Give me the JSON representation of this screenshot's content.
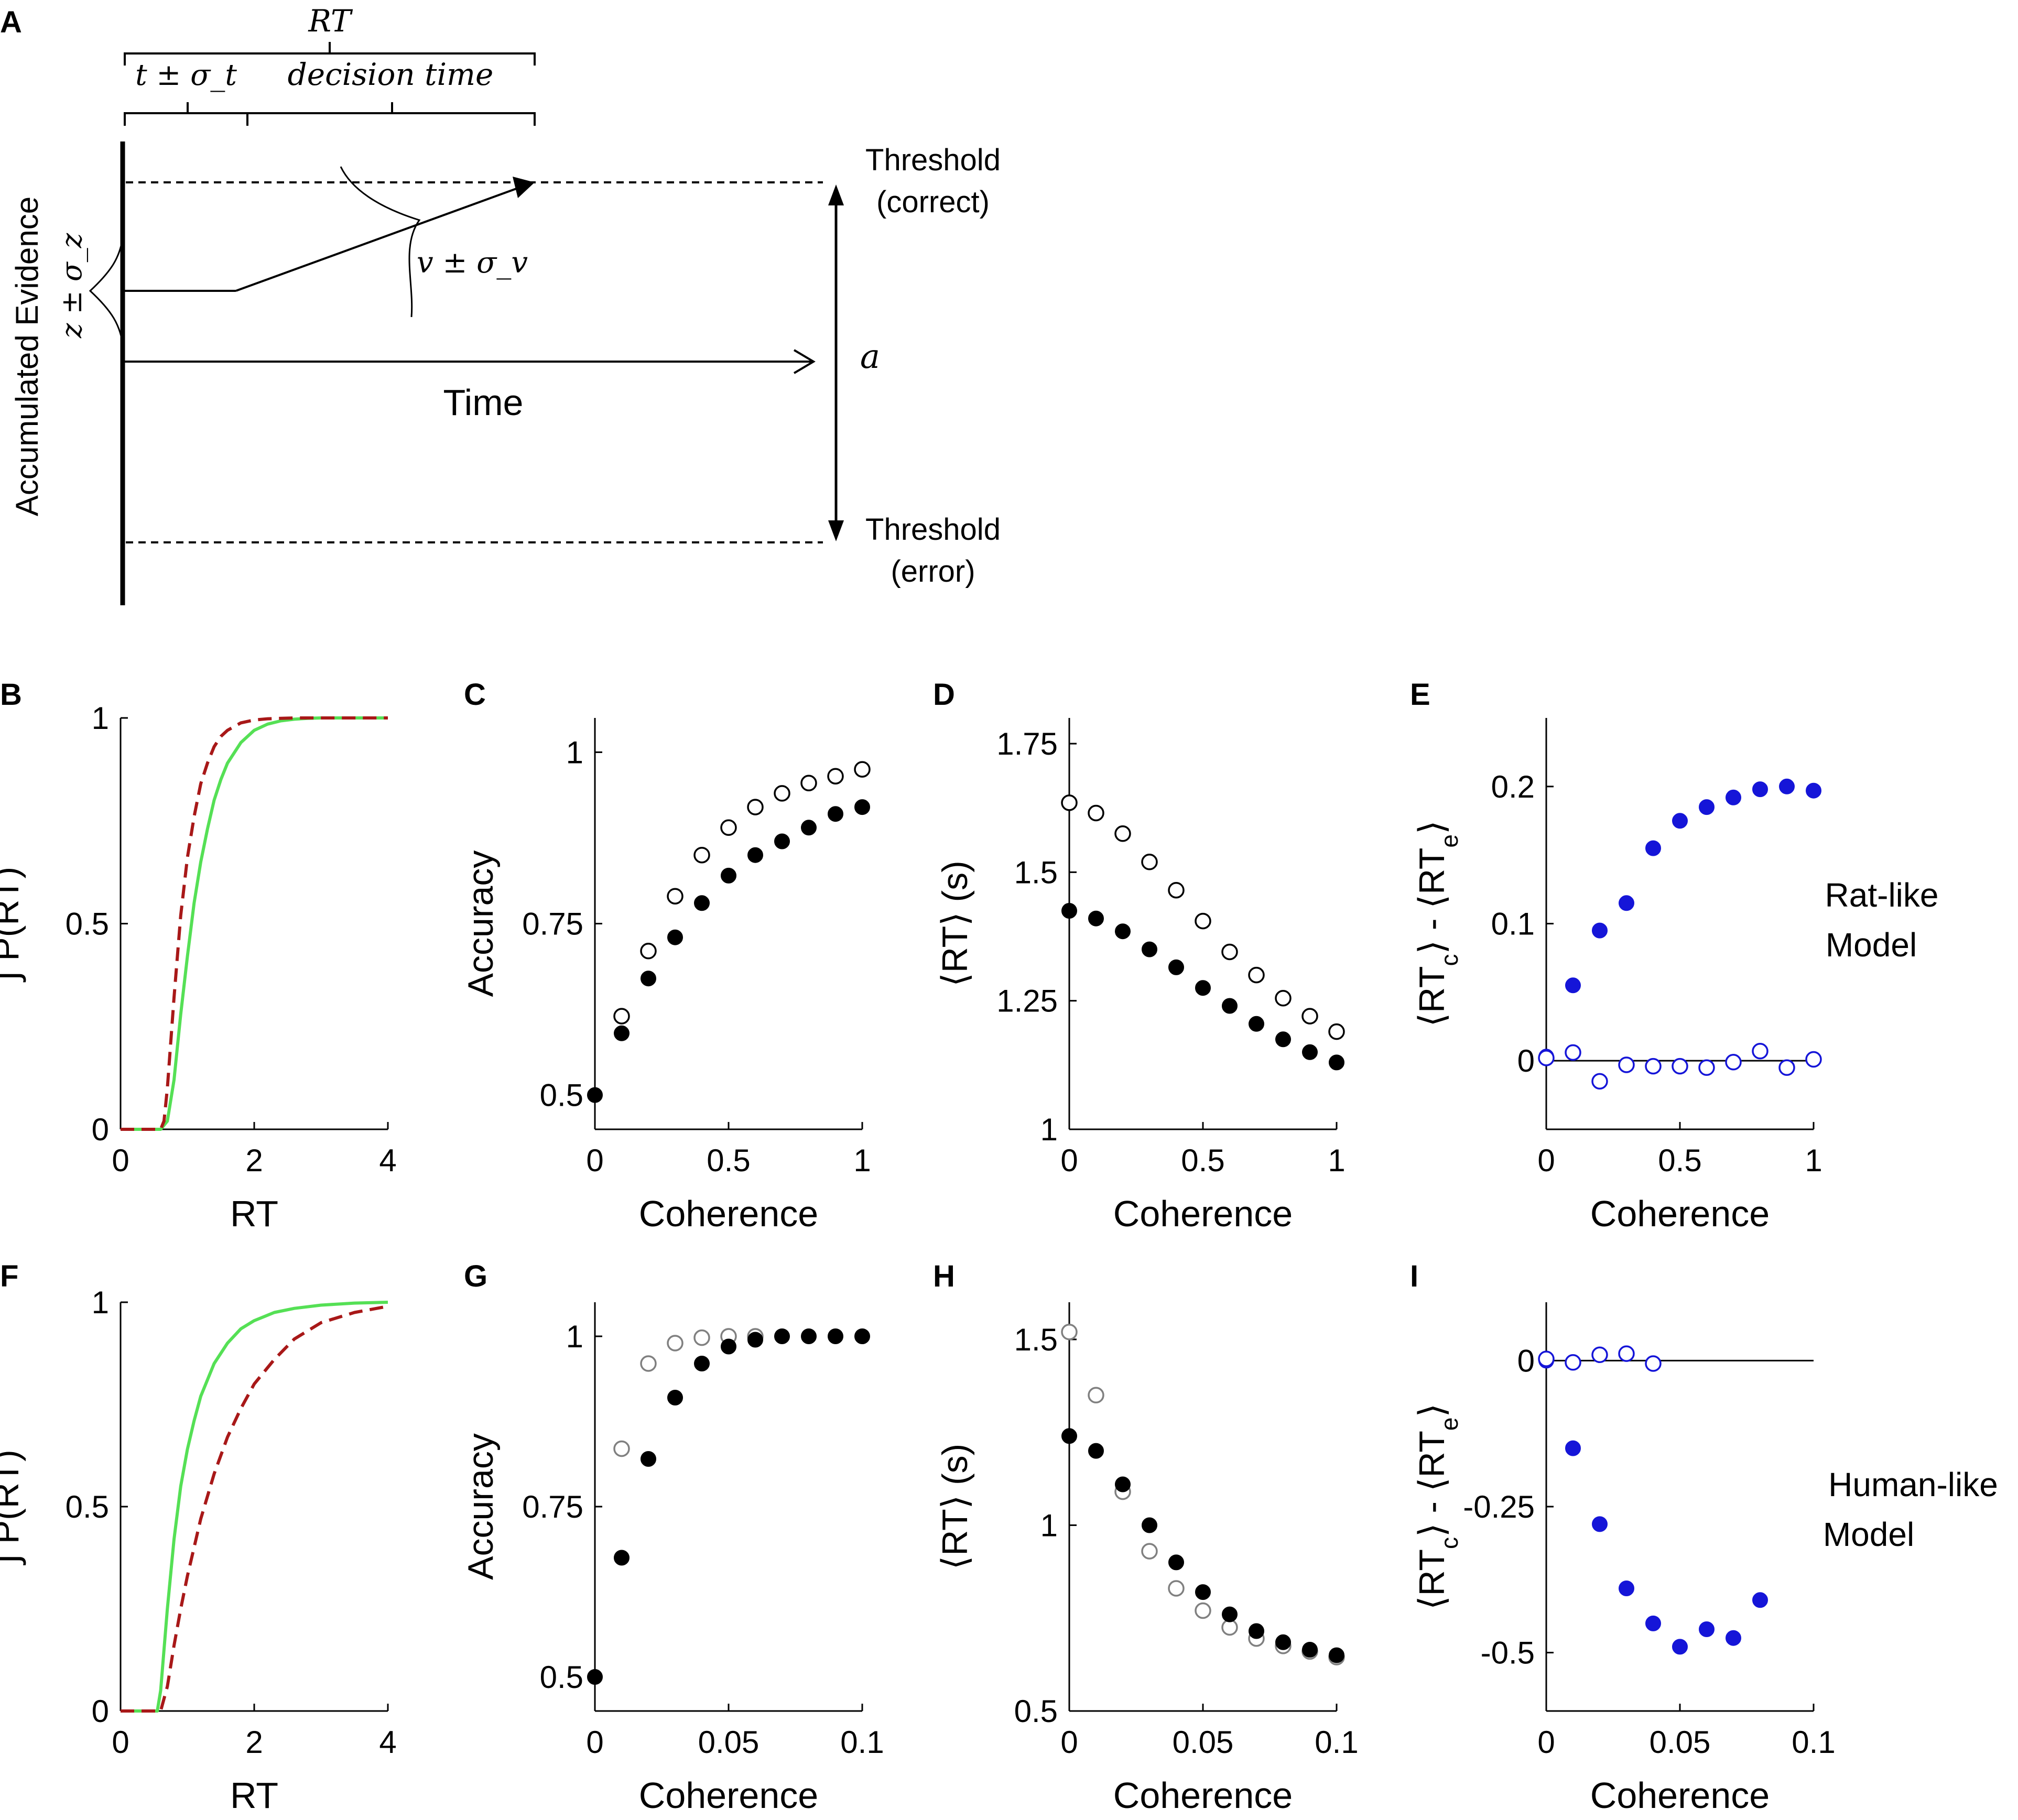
{
  "panel_letters": [
    "A",
    "B",
    "C",
    "D",
    "E",
    "F",
    "G",
    "H",
    "I"
  ],
  "schematic": {
    "rt_label": "RT",
    "nondecision_label": "t ± σ_t",
    "decision_time_label": "decision time",
    "y_axis_label": "Accumulated Evidence",
    "start_label": "z ± σ_z",
    "drift_label": "v ± σ_v",
    "x_axis_label": "Time",
    "threshold_top": [
      "Threshold",
      "(correct)"
    ],
    "threshold_bottom": [
      "Threshold",
      "(error)"
    ],
    "separation_label": "a"
  },
  "row_labels": {
    "rat": [
      "Rat-like",
      "Model"
    ],
    "human": [
      "Human-like",
      "Model"
    ]
  },
  "colors": {
    "green": "#55e055",
    "red": "#a81818",
    "blue": "#1515d8",
    "grey": "#808080",
    "black": "#000000"
  },
  "chart_data": [
    {
      "id": "B",
      "type": "line",
      "title": "",
      "xlabel": "RT",
      "ylabel": "∫ P(RT)",
      "xlim": [
        0,
        4
      ],
      "ylim": [
        0,
        1
      ],
      "xticks": [
        0,
        2,
        4
      ],
      "xtick_labels": [
        "0",
        "2",
        "4"
      ],
      "yticks": [
        0,
        0.5,
        1
      ],
      "ytick_labels": [
        "0",
        "0.5",
        "1"
      ],
      "series": [
        {
          "name": "correct",
          "style": "solid",
          "color": "green",
          "x": [
            0,
            0.6,
            0.7,
            0.8,
            0.9,
            1.0,
            1.1,
            1.2,
            1.3,
            1.4,
            1.5,
            1.6,
            1.8,
            2.0,
            2.2,
            2.4,
            2.6,
            2.8,
            3.0,
            3.5,
            4.0
          ],
          "y": [
            0,
            0,
            0.02,
            0.12,
            0.28,
            0.42,
            0.55,
            0.65,
            0.73,
            0.8,
            0.85,
            0.89,
            0.94,
            0.97,
            0.985,
            0.993,
            0.997,
            0.999,
            1.0,
            1.0,
            1.0
          ]
        },
        {
          "name": "error",
          "style": "dashed",
          "color": "red",
          "x": [
            0,
            0.6,
            0.65,
            0.7,
            0.8,
            0.9,
            1.0,
            1.1,
            1.2,
            1.3,
            1.4,
            1.5,
            1.6,
            1.8,
            2.0,
            2.2,
            2.4,
            2.6,
            3.0,
            3.5,
            4.0
          ],
          "y": [
            0,
            0,
            0.02,
            0.1,
            0.32,
            0.52,
            0.66,
            0.76,
            0.84,
            0.89,
            0.93,
            0.955,
            0.97,
            0.988,
            0.995,
            0.998,
            0.999,
            1.0,
            1.0,
            1.0,
            1.0
          ]
        }
      ]
    },
    {
      "id": "C",
      "type": "scatter",
      "title": "",
      "xlabel": "Coherence",
      "ylabel": "Accuracy",
      "xlim": [
        0,
        1
      ],
      "ylim": [
        0.45,
        1.05
      ],
      "xticks": [
        0,
        0.5,
        1
      ],
      "xtick_labels": [
        "0",
        "0.5",
        "1"
      ],
      "yticks": [
        0.5,
        0.75,
        1
      ],
      "ytick_labels": [
        "0.5",
        "0.75",
        "1"
      ],
      "series": [
        {
          "name": "filled",
          "marker": "filled",
          "color": "black",
          "x": [
            0,
            0.1,
            0.2,
            0.3,
            0.4,
            0.5,
            0.6,
            0.7,
            0.8,
            0.9,
            1.0
          ],
          "y": [
            0.5,
            0.59,
            0.67,
            0.73,
            0.78,
            0.82,
            0.85,
            0.87,
            0.89,
            0.91,
            0.92
          ]
        },
        {
          "name": "open",
          "marker": "open",
          "color": "black",
          "x": [
            0.1,
            0.2,
            0.3,
            0.4,
            0.5,
            0.6,
            0.7,
            0.8,
            0.9,
            1.0
          ],
          "y": [
            0.615,
            0.71,
            0.79,
            0.85,
            0.89,
            0.92,
            0.94,
            0.955,
            0.965,
            0.975
          ]
        }
      ]
    },
    {
      "id": "D",
      "type": "scatter",
      "title": "",
      "xlabel": "Coherence",
      "ylabel": "⟨RT⟩ (s)",
      "xlim": [
        0,
        1
      ],
      "ylim": [
        1,
        1.8
      ],
      "xticks": [
        0,
        0.5,
        1
      ],
      "xtick_labels": [
        "0",
        "0.5",
        "1"
      ],
      "yticks": [
        1,
        1.25,
        1.5,
        1.75
      ],
      "ytick_labels": [
        "1",
        "1.25",
        "1.5",
        "1.75"
      ],
      "series": [
        {
          "name": "open",
          "marker": "open",
          "color": "black",
          "x": [
            0,
            0.1,
            0.2,
            0.3,
            0.4,
            0.5,
            0.6,
            0.7,
            0.8,
            0.9,
            1.0
          ],
          "y": [
            1.635,
            1.615,
            1.575,
            1.52,
            1.465,
            1.405,
            1.345,
            1.3,
            1.255,
            1.22,
            1.19
          ]
        },
        {
          "name": "filled",
          "marker": "filled",
          "color": "black",
          "x": [
            0,
            0.1,
            0.2,
            0.3,
            0.4,
            0.5,
            0.6,
            0.7,
            0.8,
            0.9,
            1.0
          ],
          "y": [
            1.425,
            1.41,
            1.385,
            1.35,
            1.315,
            1.275,
            1.24,
            1.205,
            1.175,
            1.15,
            1.13
          ]
        }
      ]
    },
    {
      "id": "E",
      "type": "scatter",
      "title": "",
      "xlabel": "Coherence",
      "ylabel": "⟨RT_c⟩ - ⟨RT_e⟩",
      "xlim": [
        0,
        1
      ],
      "ylim": [
        -0.05,
        0.25
      ],
      "xticks": [
        0,
        0.5,
        1
      ],
      "xtick_labels": [
        "0",
        "0.5",
        "1"
      ],
      "yticks": [
        0,
        0.1,
        0.2
      ],
      "ytick_labels": [
        "0",
        "0.1",
        "0.2"
      ],
      "zero_line": true,
      "series": [
        {
          "name": "filled",
          "marker": "filled",
          "color": "blue",
          "x": [
            0,
            0.1,
            0.2,
            0.3,
            0.4,
            0.5,
            0.6,
            0.7,
            0.8,
            0.9,
            1.0
          ],
          "y": [
            0.003,
            0.055,
            0.095,
            0.115,
            0.155,
            0.175,
            0.185,
            0.192,
            0.198,
            0.2,
            0.197
          ]
        },
        {
          "name": "open",
          "marker": "open",
          "color": "blue",
          "x": [
            0,
            0.1,
            0.2,
            0.3,
            0.4,
            0.5,
            0.6,
            0.7,
            0.8,
            0.9,
            1.0
          ],
          "y": [
            0.002,
            0.006,
            -0.015,
            -0.003,
            -0.004,
            -0.004,
            -0.005,
            -0.001,
            0.007,
            -0.005,
            0.001
          ]
        }
      ]
    },
    {
      "id": "F",
      "type": "line",
      "title": "",
      "xlabel": "RT",
      "ylabel": "∫ P(RT)",
      "xlim": [
        0,
        4
      ],
      "ylim": [
        0,
        1
      ],
      "xticks": [
        0,
        2,
        4
      ],
      "xtick_labels": [
        "0",
        "2",
        "4"
      ],
      "yticks": [
        0,
        0.5,
        1
      ],
      "ytick_labels": [
        "0",
        "0.5",
        "1"
      ],
      "series": [
        {
          "name": "correct",
          "style": "solid",
          "color": "green",
          "x": [
            0,
            0.55,
            0.6,
            0.7,
            0.8,
            0.9,
            1.0,
            1.1,
            1.2,
            1.4,
            1.6,
            1.8,
            2.0,
            2.3,
            2.6,
            3.0,
            3.5,
            4.0
          ],
          "y": [
            0,
            0,
            0.05,
            0.25,
            0.42,
            0.55,
            0.64,
            0.71,
            0.77,
            0.85,
            0.9,
            0.935,
            0.955,
            0.975,
            0.985,
            0.993,
            0.998,
            1.0
          ]
        },
        {
          "name": "error",
          "style": "dashed",
          "color": "red",
          "x": [
            0,
            0.6,
            0.7,
            0.8,
            0.9,
            1.0,
            1.2,
            1.4,
            1.6,
            1.8,
            2.0,
            2.3,
            2.6,
            3.0,
            3.5,
            4.0
          ],
          "y": [
            0,
            0,
            0.06,
            0.16,
            0.25,
            0.33,
            0.47,
            0.58,
            0.67,
            0.74,
            0.8,
            0.86,
            0.91,
            0.95,
            0.975,
            0.99
          ]
        }
      ]
    },
    {
      "id": "G",
      "type": "scatter",
      "title": "",
      "xlabel": "Coherence",
      "ylabel": "Accuracy",
      "xlim": [
        0,
        0.1
      ],
      "ylim": [
        0.45,
        1.05
      ],
      "xticks": [
        0,
        0.05,
        0.1
      ],
      "xtick_labels": [
        "0",
        "0.05",
        "0.1"
      ],
      "yticks": [
        0.5,
        0.75,
        1
      ],
      "ytick_labels": [
        "0.5",
        "0.75",
        "1"
      ],
      "series": [
        {
          "name": "open",
          "marker": "open",
          "color": "grey",
          "x": [
            0.01,
            0.02,
            0.03,
            0.04,
            0.05,
            0.06
          ],
          "y": [
            0.835,
            0.96,
            0.99,
            0.998,
            1.0,
            1.0
          ]
        },
        {
          "name": "filled",
          "marker": "filled",
          "color": "black",
          "x": [
            0,
            0.01,
            0.02,
            0.03,
            0.04,
            0.05,
            0.06,
            0.07,
            0.08,
            0.09,
            0.1
          ],
          "y": [
            0.5,
            0.675,
            0.82,
            0.91,
            0.96,
            0.985,
            0.995,
            1.0,
            1.0,
            1.0,
            1.0
          ]
        }
      ]
    },
    {
      "id": "H",
      "type": "scatter",
      "title": "",
      "xlabel": "Coherence",
      "ylabel": "⟨RT⟩ (s)",
      "xlim": [
        0,
        0.1
      ],
      "ylim": [
        0.5,
        1.6
      ],
      "xticks": [
        0,
        0.05,
        0.1
      ],
      "xtick_labels": [
        "0",
        "0.05",
        "0.1"
      ],
      "yticks": [
        0.5,
        1,
        1.5
      ],
      "ytick_labels": [
        "0.5",
        "1",
        "1.5"
      ],
      "series": [
        {
          "name": "open",
          "marker": "open",
          "color": "grey",
          "x": [
            0,
            0.01,
            0.02,
            0.03,
            0.04,
            0.05,
            0.06,
            0.07,
            0.08,
            0.09,
            0.1
          ],
          "y": [
            1.52,
            1.35,
            1.09,
            0.93,
            0.83,
            0.77,
            0.725,
            0.695,
            0.675,
            0.66,
            0.645
          ]
        },
        {
          "name": "filled",
          "marker": "filled",
          "color": "black",
          "x": [
            0,
            0.01,
            0.02,
            0.03,
            0.04,
            0.05,
            0.06,
            0.07,
            0.08,
            0.09,
            0.1
          ],
          "y": [
            1.24,
            1.2,
            1.11,
            1.0,
            0.9,
            0.82,
            0.76,
            0.715,
            0.685,
            0.665,
            0.65
          ]
        }
      ]
    },
    {
      "id": "I",
      "type": "scatter",
      "title": "",
      "xlabel": "Coherence",
      "ylabel": "⟨RT_c⟩ - ⟨RT_e⟩",
      "xlim": [
        0,
        0.1
      ],
      "ylim": [
        -0.6,
        0.1
      ],
      "xticks": [
        0,
        0.05,
        0.1
      ],
      "xtick_labels": [
        "0",
        "0.05",
        "0.1"
      ],
      "yticks": [
        -0.5,
        -0.25,
        0
      ],
      "ytick_labels": [
        "-0.5",
        "-0.25",
        "0"
      ],
      "zero_line": true,
      "series": [
        {
          "name": "filled",
          "marker": "filled",
          "color": "blue",
          "x": [
            0,
            0.01,
            0.02,
            0.03,
            0.04,
            0.05,
            0.06,
            0.07,
            0.08
          ],
          "y": [
            0.0,
            -0.15,
            -0.28,
            -0.39,
            -0.45,
            -0.49,
            -0.46,
            -0.475,
            -0.41
          ]
        },
        {
          "name": "open",
          "marker": "open",
          "color": "blue",
          "x": [
            0,
            0.01,
            0.02,
            0.03,
            0.04
          ],
          "y": [
            0.003,
            -0.003,
            0.01,
            0.012,
            -0.005
          ]
        }
      ]
    }
  ]
}
